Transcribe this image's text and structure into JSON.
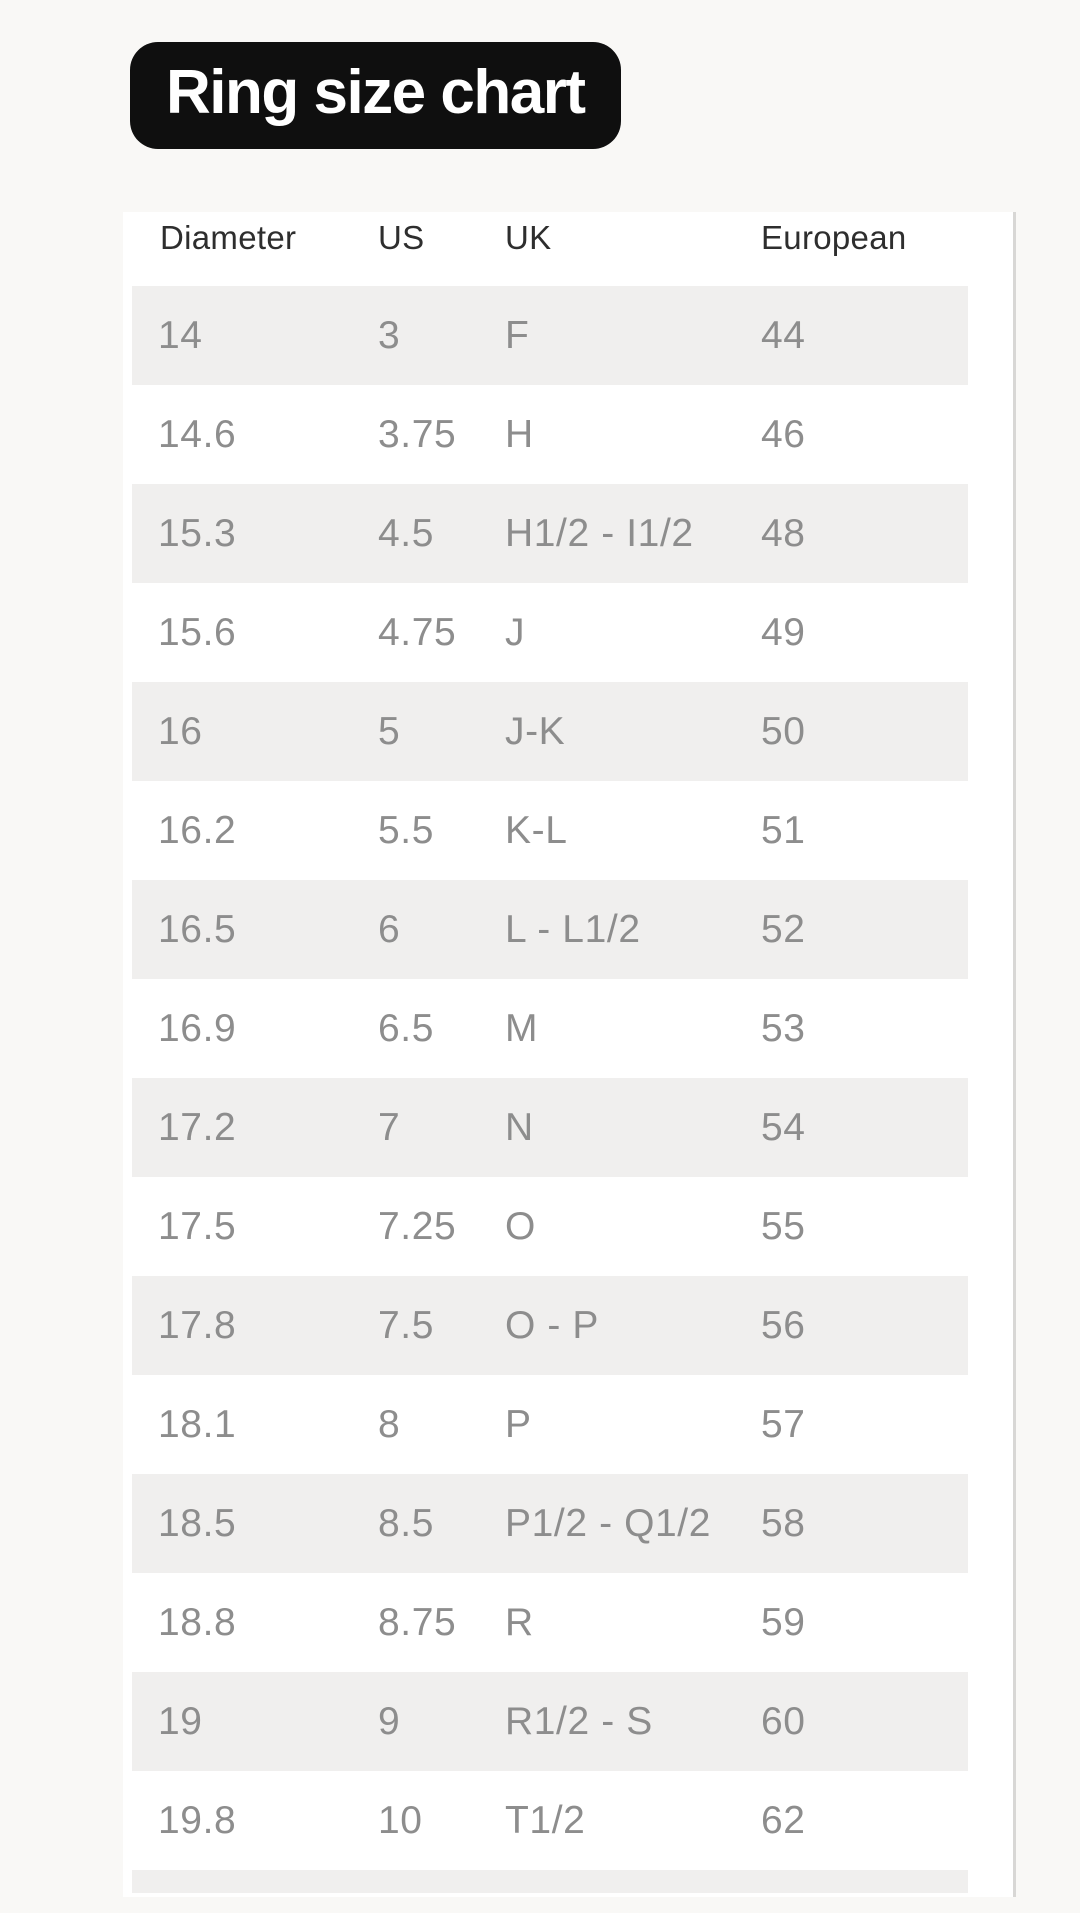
{
  "title_badge": {
    "text": "Ring size chart"
  },
  "chart_data": {
    "type": "table",
    "title": "Ring size chart",
    "columns": [
      "Diameter",
      "US",
      "UK",
      "European"
    ],
    "rows": [
      [
        "14",
        "3",
        "F",
        "44"
      ],
      [
        "14.6",
        "3.75",
        "H",
        "46"
      ],
      [
        "15.3",
        "4.5",
        "H1/2 - I1/2",
        "48"
      ],
      [
        "15.6",
        "4.75",
        "J",
        "49"
      ],
      [
        "16",
        "5",
        "J-K",
        "50"
      ],
      [
        "16.2",
        "5.5",
        "K-L",
        "51"
      ],
      [
        "16.5",
        "6",
        "L - L1/2",
        "52"
      ],
      [
        "16.9",
        "6.5",
        "M",
        "53"
      ],
      [
        "17.2",
        "7",
        "N",
        "54"
      ],
      [
        "17.5",
        "7.25",
        "O",
        "55"
      ],
      [
        "17.8",
        "7.5",
        "O - P",
        "56"
      ],
      [
        "18.1",
        "8",
        "P",
        "57"
      ],
      [
        "18.5",
        "8.5",
        "P1/2 - Q1/2",
        "58"
      ],
      [
        "18.8",
        "8.75",
        "R",
        "59"
      ],
      [
        "19",
        "9",
        "R1/2 - S",
        "60"
      ],
      [
        "19.8",
        "10",
        "T1/2",
        "62"
      ]
    ],
    "layout_hints": {
      "striped_rows": true,
      "first_row_striped": true,
      "next_row_partially_visible": true
    }
  },
  "colors": {
    "page_background": "#f9f8f6",
    "card_background": "#ffffff",
    "row_stripe": "#f0efee",
    "body_text": "#8d8d8d",
    "header_text": "#2e2e2e",
    "title_background": "#0f0f0f",
    "title_text": "#ffffff",
    "scrollbar_line": "#d8d7d5"
  }
}
